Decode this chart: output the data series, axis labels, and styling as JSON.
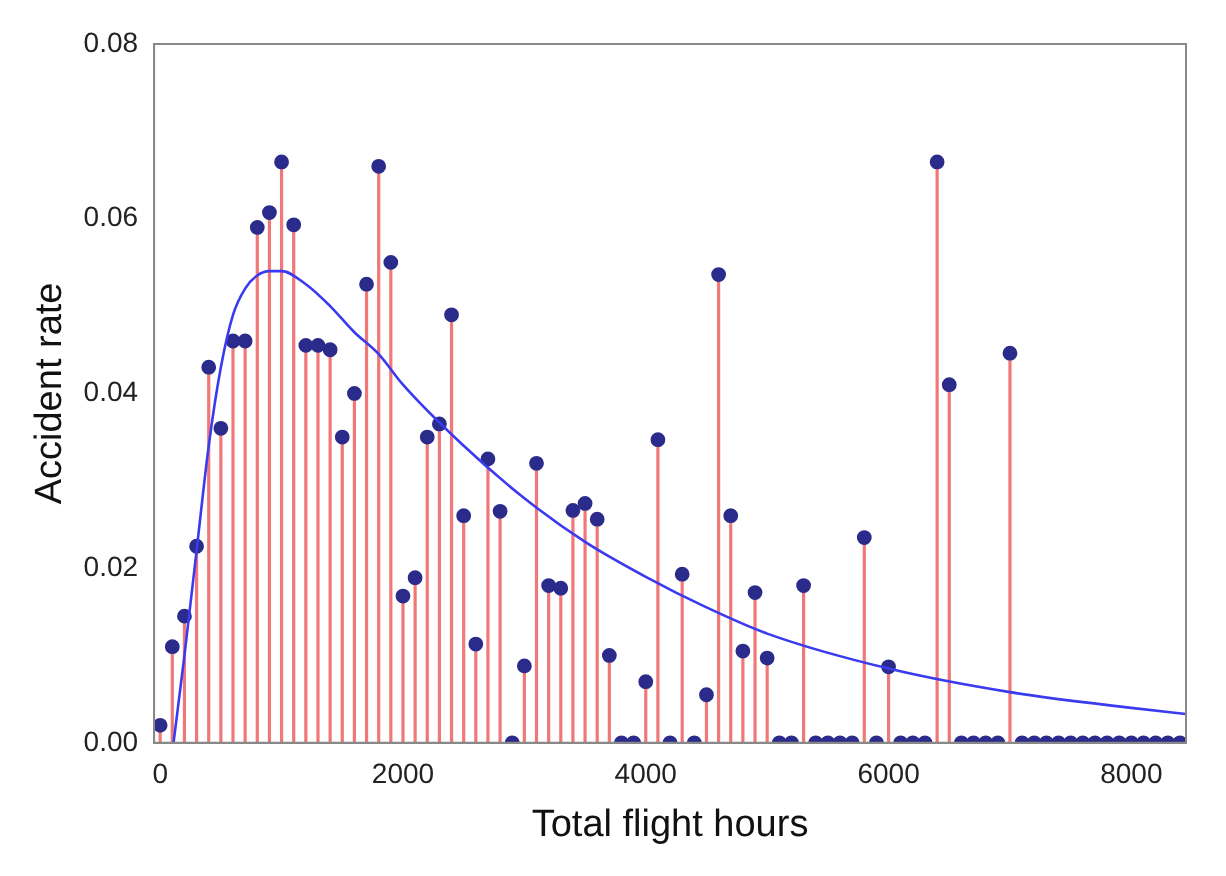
{
  "chart_data": {
    "type": "lollipop",
    "xlabel": "Total flight hours",
    "ylabel": "Accident rate",
    "xlim": [
      -50,
      8450
    ],
    "ylim": [
      0,
      0.08
    ],
    "xticks": [
      0,
      2000,
      4000,
      6000,
      8000
    ],
    "yticks": [
      {
        "value": 0,
        "label": "0.00"
      },
      {
        "value": 0.02,
        "label": "0.02"
      },
      {
        "value": 0.04,
        "label": "0.04"
      },
      {
        "value": 0.06,
        "label": "0.06"
      },
      {
        "value": 0.08,
        "label": "0.08"
      }
    ],
    "grid": false,
    "legend": false,
    "marker": "circle",
    "series": [
      {
        "color": "#2b2b8c",
        "x": [
          0,
          100,
          200,
          300,
          400,
          500,
          600,
          700,
          800,
          900,
          1000,
          1100,
          1200,
          1300,
          1400,
          1500,
          1600,
          1700,
          1800,
          1900,
          2000,
          2100,
          2200,
          2300,
          2400,
          2500,
          2600,
          2700,
          2800,
          2900,
          3000,
          3100,
          3200,
          3300,
          3400,
          3500,
          3600,
          3700,
          3800,
          3900,
          4000,
          4100,
          4200,
          4300,
          4400,
          4500,
          4600,
          4700,
          4800,
          4900,
          5000,
          5100,
          5200,
          5300,
          5400,
          5500,
          5600,
          5700,
          5800,
          5900,
          6000,
          6100,
          6200,
          6300,
          6400,
          6500,
          6600,
          6700,
          6800,
          6900,
          7000,
          7100,
          7200,
          7300,
          7400,
          7500,
          7600,
          7700,
          7800,
          7900,
          8000,
          8100,
          8200,
          8300,
          8400
        ],
        "values": [
          0.002,
          0.011,
          0.0145,
          0.0225,
          0.043,
          0.036,
          0.046,
          0.046,
          0.059,
          0.0607,
          0.0665,
          0.0593,
          0.0455,
          0.0455,
          0.045,
          0.035,
          0.04,
          0.0525,
          0.066,
          0.055,
          0.0168,
          0.0189,
          0.035,
          0.0365,
          0.049,
          0.026,
          0.0113,
          0.0325,
          0.0265,
          0,
          0.0088,
          0.032,
          0.018,
          0.0177,
          0.0266,
          0.0274,
          0.0256,
          0.01,
          0,
          0,
          0.007,
          0.0347,
          0,
          0.0193,
          0,
          0.0055,
          0.0536,
          0.026,
          0.0105,
          0.0172,
          0.0097,
          0,
          0,
          0.018,
          0,
          0,
          0,
          0,
          0.0235,
          0,
          0.0087,
          0,
          0,
          0,
          0.0665,
          0.041,
          0,
          0,
          0,
          0,
          0.0446,
          0,
          0,
          0,
          0,
          0,
          0,
          0,
          0,
          0,
          0,
          0,
          0,
          0,
          0
        ]
      },
      {
        "type": "line",
        "color": "#3a3af0",
        "marker": "none",
        "x": [
          110,
          200,
          300,
          400,
          500,
          600,
          700,
          800,
          900,
          1000,
          1200,
          1400,
          1600,
          1800,
          2000,
          2500,
          3000,
          3500,
          4000,
          4500,
          5000,
          6000,
          7000,
          8000,
          8450
        ],
        "values": [
          0,
          0.01,
          0.022,
          0.034,
          0.043,
          0.049,
          0.052,
          0.0535,
          0.054,
          0.054,
          0.0525,
          0.05,
          0.047,
          0.0445,
          0.041,
          0.034,
          0.028,
          0.023,
          0.019,
          0.0155,
          0.0125,
          0.0085,
          0.0058,
          0.004,
          0.0033
        ]
      }
    ]
  }
}
